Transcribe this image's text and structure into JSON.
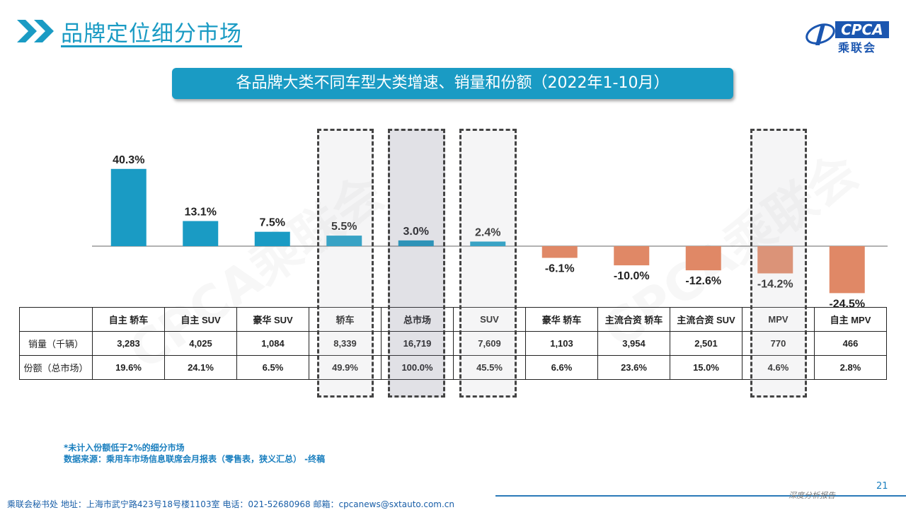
{
  "header": {
    "title": "品牌定位细分市场",
    "logo_text": "CPCA",
    "logo_cn": "乘联会"
  },
  "chart_title": "各品牌大类不同车型大类增速、销量和份额（2022年1-10月）",
  "chart_data": {
    "type": "bar",
    "title": "各品牌大类不同车型大类增速、销量和份额（2022年1-10月）",
    "categories": [
      "自主 轿车",
      "自主 SUV",
      "豪华 SUV",
      "轿车",
      "总市场",
      "SUV",
      "豪华 轿车",
      "主流合资 轿车",
      "主流合资 SUV",
      "MPV",
      "自主 MPV"
    ],
    "values": [
      40.3,
      13.1,
      7.5,
      5.5,
      3.0,
      2.4,
      -6.1,
      -10.0,
      -12.6,
      -14.2,
      -24.5
    ],
    "value_labels": [
      "40.3%",
      "13.1%",
      "7.5%",
      "5.5%",
      "3.0%",
      "2.4%",
      "-6.1%",
      "-10.0%",
      "-12.6%",
      "-14.2%",
      "-24.5%"
    ],
    "unit": "%",
    "positive_color": "#1a9bc4",
    "negative_color": "#e08866",
    "highlighted": [
      "轿车",
      "总市场",
      "SUV",
      "MPV"
    ]
  },
  "table": {
    "rows": [
      {
        "label": "销量（千辆）",
        "values": [
          "3,283",
          "4,025",
          "1,084",
          "8,339",
          "16,719",
          "7,609",
          "1,103",
          "3,954",
          "2,501",
          "770",
          "466"
        ]
      },
      {
        "label": "份额（总市场）",
        "values": [
          "19.6%",
          "24.1%",
          "6.5%",
          "49.9%",
          "100.0%",
          "45.5%",
          "6.6%",
          "23.6%",
          "15.0%",
          "4.6%",
          "2.8%"
        ]
      }
    ]
  },
  "footnotes": {
    "note": "*未计入份额低于2%的细分市场",
    "source": "数据来源：乘用车市场信息联席会月报表（零售表，狭义汇总） -终稿"
  },
  "footer": {
    "text": "乘联会秘书处   地址：上海市武宁路423号18号楼1103室  电话：021-52680968   邮箱：cpcanews@sxtauto.com.cn",
    "tag": "深度分析报告",
    "page": "21"
  },
  "watermark": "CPCA乘联会"
}
